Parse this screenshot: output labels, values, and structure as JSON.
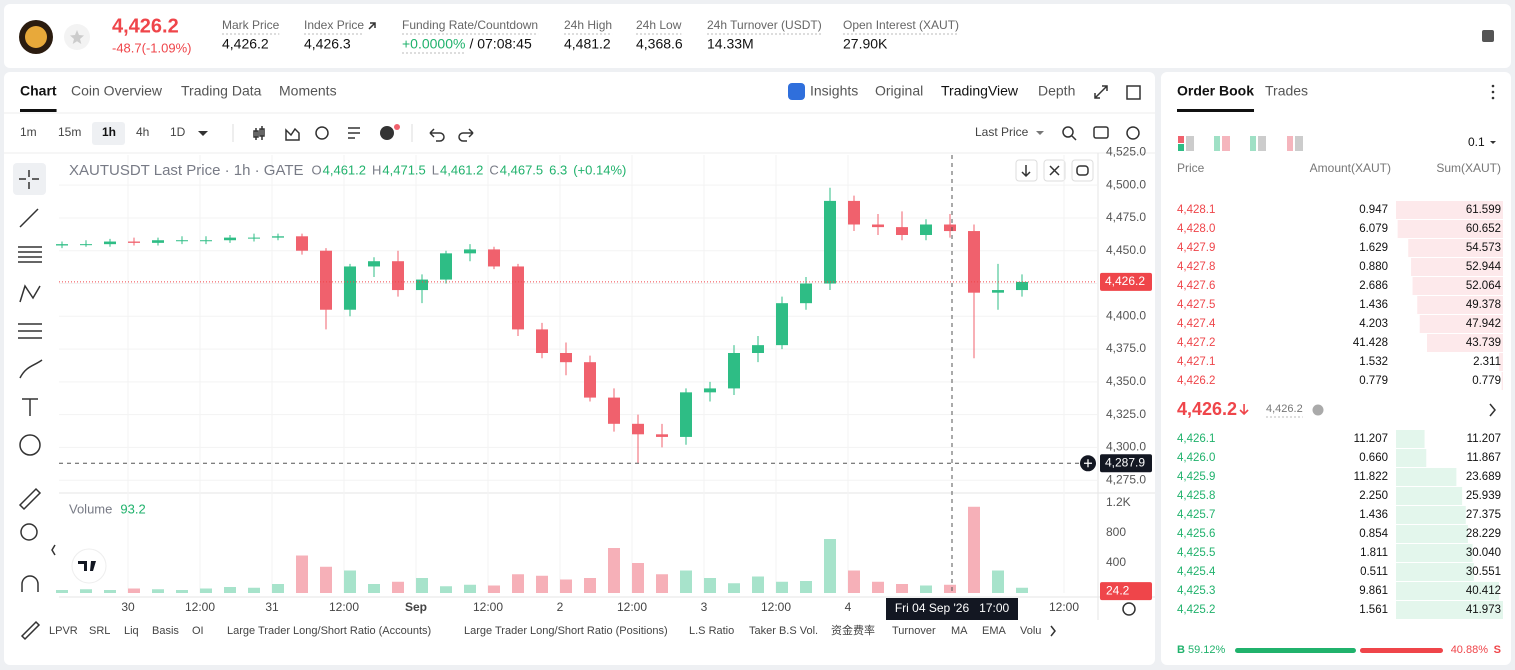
{
  "header": {
    "last_price": "4,426.2",
    "change": "-48.7(-1.09%)",
    "stats": [
      {
        "label": "Mark Price",
        "value": "4,426.2"
      },
      {
        "label": "Index Price",
        "value": "4,426.3"
      },
      {
        "label": "Funding Rate/Countdown",
        "value": "+0.0000%",
        "countdown": "/ 07:08:45"
      },
      {
        "label": "24h High",
        "value": "4,481.2"
      },
      {
        "label": "24h Low",
        "value": "4,368.6"
      },
      {
        "label": "24h Turnover (USDT)",
        "value": "14.33M"
      },
      {
        "label": "Open Interest (XAUT)",
        "value": "27.90K"
      }
    ]
  },
  "chart_tabs": [
    "Chart",
    "Coin Overview",
    "Trading Data",
    "Moments"
  ],
  "view_tabs": [
    "Insights",
    "Original",
    "TradingView",
    "Depth"
  ],
  "intervals": [
    "1m",
    "15m",
    "1h",
    "4h",
    "1D"
  ],
  "price_source": "Last Price",
  "chart_data": {
    "type": "candlestick",
    "legend": {
      "title": "XAUTUSDT Last Price · 1h · GATE",
      "o_label": "O",
      "o": "4,461.2",
      "h_label": "H",
      "h": "4,471.5",
      "l_label": "L",
      "l": "4,461.2",
      "c_label": "C",
      "c": "4,467.5",
      "change": "6.3",
      "change_pct": "(+0.14%)"
    },
    "x": [
      0,
      4,
      8,
      12,
      16,
      20,
      24,
      28,
      32,
      36,
      40,
      44,
      48,
      52,
      56,
      60,
      64,
      68,
      72,
      76,
      80,
      84,
      88,
      92,
      96,
      100,
      104,
      108,
      112,
      116,
      120,
      124,
      128,
      132,
      136,
      140,
      144,
      148,
      152,
      156,
      160
    ],
    "open": [
      4454,
      4455,
      4455,
      4457,
      4456,
      4458,
      4458,
      4458,
      4460,
      4460,
      4461,
      4450,
      4405,
      4438,
      4442,
      4420,
      4428,
      4448,
      4451,
      4438,
      4390,
      4372,
      4365,
      4338,
      4318,
      4310,
      4308,
      4342,
      4345,
      4372,
      4378,
      4410,
      4425,
      4488,
      4470,
      4468,
      4462,
      4470,
      4465,
      4418,
      4420
    ],
    "high": [
      4457,
      4458,
      4459,
      4460,
      4460,
      4461,
      4461,
      4462,
      4463,
      4463,
      4463,
      4452,
      4440,
      4445,
      4450,
      4432,
      4450,
      4455,
      4453,
      4440,
      4395,
      4380,
      4370,
      4345,
      4325,
      4318,
      4345,
      4350,
      4378,
      4385,
      4415,
      4430,
      4498,
      4492,
      4478,
      4480,
      4474,
      4478,
      4470,
      4440,
      4432
    ],
    "low": [
      4452,
      4453,
      4453,
      4454,
      4454,
      4455,
      4455,
      4456,
      4457,
      4458,
      4447,
      4390,
      4400,
      4430,
      4415,
      4410,
      4425,
      4442,
      4436,
      4385,
      4368,
      4355,
      4335,
      4312,
      4288,
      4300,
      4302,
      4335,
      4340,
      4365,
      4375,
      4405,
      4420,
      4465,
      4462,
      4458,
      4458,
      4460,
      4368,
      4405,
      4415
    ],
    "close": [
      4455,
      4455,
      4457,
      4456,
      4458,
      4458,
      4458,
      4460,
      4460,
      4461,
      4450,
      4405,
      4438,
      4442,
      4420,
      4428,
      4448,
      4451,
      4438,
      4390,
      4372,
      4365,
      4338,
      4318,
      4310,
      4308,
      4342,
      4345,
      4372,
      4378,
      4410,
      4425,
      4488,
      4470,
      4468,
      4462,
      4470,
      4465,
      4418,
      4420,
      4426.2
    ],
    "volume": [
      40,
      50,
      40,
      60,
      50,
      40,
      60,
      80,
      70,
      120,
      500,
      350,
      300,
      120,
      150,
      200,
      90,
      110,
      100,
      250,
      230,
      180,
      200,
      600,
      400,
      250,
      300,
      200,
      130,
      220,
      150,
      160,
      720,
      300,
      150,
      120,
      100,
      110,
      1150,
      300,
      70
    ],
    "up_color": "#2ebd85",
    "down_color": "#f0616d",
    "xlim": [
      -0.5,
      172.5
    ],
    "xticks": [
      {
        "value": 11,
        "label": "30"
      },
      {
        "value": 23,
        "label": "12:00"
      },
      {
        "value": 35,
        "label": "31"
      },
      {
        "value": 47,
        "label": "12:00"
      },
      {
        "value": 59,
        "label": "Sep"
      },
      {
        "value": 71,
        "label": "12:00"
      },
      {
        "value": 83,
        "label": "2"
      },
      {
        "value": 95,
        "label": "12:00"
      },
      {
        "value": 107,
        "label": "3"
      },
      {
        "value": 119,
        "label": "12:00"
      },
      {
        "value": 131,
        "label": "4"
      },
      {
        "value": 167,
        "label": "12:00"
      }
    ],
    "ylim": [
      4266,
      4523
    ],
    "yticks": [
      {
        "value": 4275,
        "label": "4,275.0"
      },
      {
        "value": 4300,
        "label": "4,300.0"
      },
      {
        "value": 4325,
        "label": "4,325.0"
      },
      {
        "value": 4350,
        "label": "4,350.0"
      },
      {
        "value": 4375,
        "label": "4,375.0"
      },
      {
        "value": 4400,
        "label": "4,400.0"
      },
      {
        "value": 4425,
        "label": "4,425.0"
      },
      {
        "value": 4450,
        "label": "4,450.0"
      },
      {
        "value": 4475,
        "label": "4,475.0"
      },
      {
        "value": 4500,
        "label": "4,500.0"
      },
      {
        "value": 4525,
        "label": "4,525.0"
      }
    ],
    "volume_label": "Volume",
    "volume_value": 93.2,
    "volume_tag": 24.2,
    "vylim": [
      0,
      1307
    ],
    "vyticks": [
      400,
      800,
      {
        "value": 1200,
        "label": "1.2K"
      }
    ],
    "grid": true,
    "current_price": {
      "value": 4426.2,
      "label": "4,426.2"
    },
    "crosshair": {
      "price": {
        "value": 4287.9,
        "label": "4,287.9"
      },
      "time": "Fri 04 Sep '26   17:00"
    }
  },
  "indicators": [
    "LPVR",
    "SRL",
    "Liq",
    "Basis",
    "OI",
    "Large Trader Long/Short Ratio (Accounts)",
    "Large Trader Long/Short Ratio (Positions)",
    "L.S Ratio",
    "Taker B.S Vol.",
    "资金费率",
    "Turnover",
    "MA",
    "EMA",
    "Volu"
  ],
  "order_book": {
    "tabs": [
      "Order Book",
      "Trades"
    ],
    "precision": "0.1",
    "columns": [
      "Price",
      "Amount(XAUT)",
      "Sum(XAUT)"
    ],
    "asks": [
      [
        "4,428.1",
        "0.947",
        "61.599"
      ],
      [
        "4,428.0",
        "6.079",
        "60.652"
      ],
      [
        "4,427.9",
        "1.629",
        "54.573"
      ],
      [
        "4,427.8",
        "0.880",
        "52.944"
      ],
      [
        "4,427.6",
        "2.686",
        "52.064"
      ],
      [
        "4,427.5",
        "1.436",
        "49.378"
      ],
      [
        "4,427.4",
        "4.203",
        "47.942"
      ],
      [
        "4,427.2",
        "41.428",
        "43.739"
      ],
      [
        "4,427.1",
        "1.532",
        "2.311"
      ],
      [
        "4,426.2",
        "0.779",
        "0.779"
      ]
    ],
    "last_price": "4,426.2",
    "mark_price": "4,426.2",
    "bids": [
      [
        "4,426.1",
        "11.207",
        "11.207"
      ],
      [
        "4,426.0",
        "0.660",
        "11.867"
      ],
      [
        "4,425.9",
        "11.822",
        "23.689"
      ],
      [
        "4,425.8",
        "2.250",
        "25.939"
      ],
      [
        "4,425.7",
        "1.436",
        "27.375"
      ],
      [
        "4,425.6",
        "0.854",
        "28.229"
      ],
      [
        "4,425.5",
        "1.811",
        "30.040"
      ],
      [
        "4,425.4",
        "0.511",
        "30.551"
      ],
      [
        "4,425.3",
        "9.861",
        "40.412"
      ],
      [
        "4,425.2",
        "1.561",
        "41.973"
      ]
    ],
    "buy_label": "B",
    "buy_ratio": "59.12%",
    "sell_ratio": "40.88%",
    "sell_label": "S"
  }
}
